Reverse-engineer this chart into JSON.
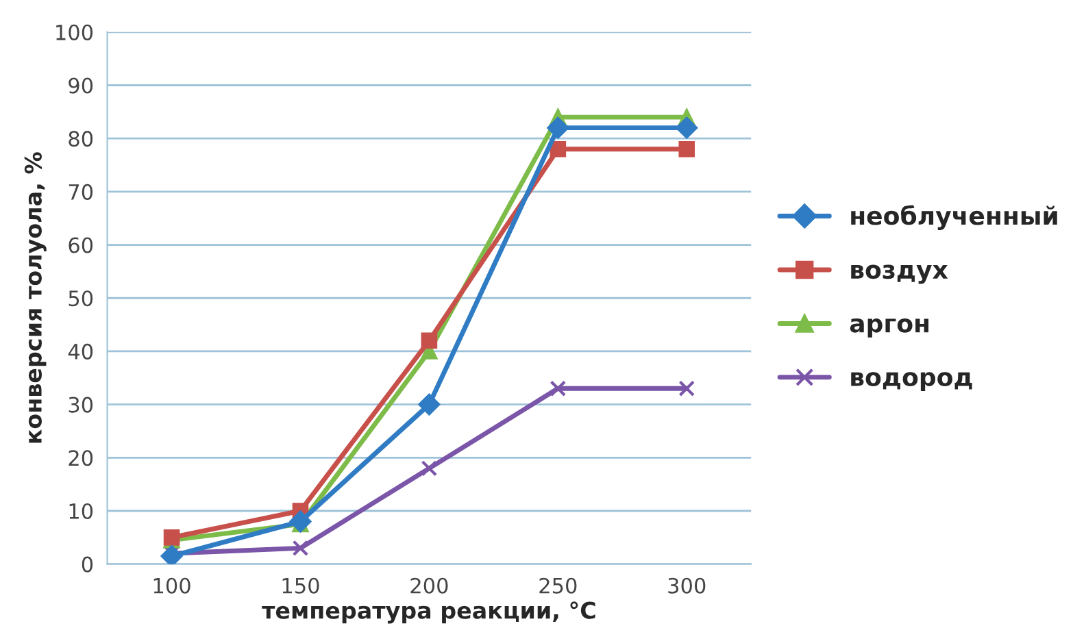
{
  "chart_data": {
    "type": "line",
    "xlabel": "температура реакции, °С",
    "ylabel": "конверсия толуола, %",
    "categories": [
      "100",
      "150",
      "200",
      "250",
      "300"
    ],
    "series": [
      {
        "name": "необлученный",
        "color": "#2f7cc4",
        "marker": "diamond",
        "values": [
          1.5,
          8,
          30,
          82,
          82
        ]
      },
      {
        "name": "воздух",
        "color": "#c8504b",
        "marker": "square",
        "values": [
          5,
          10,
          42,
          78,
          78
        ]
      },
      {
        "name": "аргон",
        "color": "#7ebc4a",
        "marker": "triangle",
        "values": [
          4.5,
          7.5,
          40,
          84,
          84
        ]
      },
      {
        "name": "водород",
        "color": "#7a55a8",
        "marker": "cross",
        "values": [
          2,
          3,
          18,
          33,
          33
        ]
      }
    ],
    "ylim": [
      0,
      100
    ],
    "yticks": [
      0,
      10,
      20,
      30,
      40,
      50,
      60,
      70,
      80,
      90,
      100
    ],
    "grid": "y",
    "legend": "right"
  }
}
